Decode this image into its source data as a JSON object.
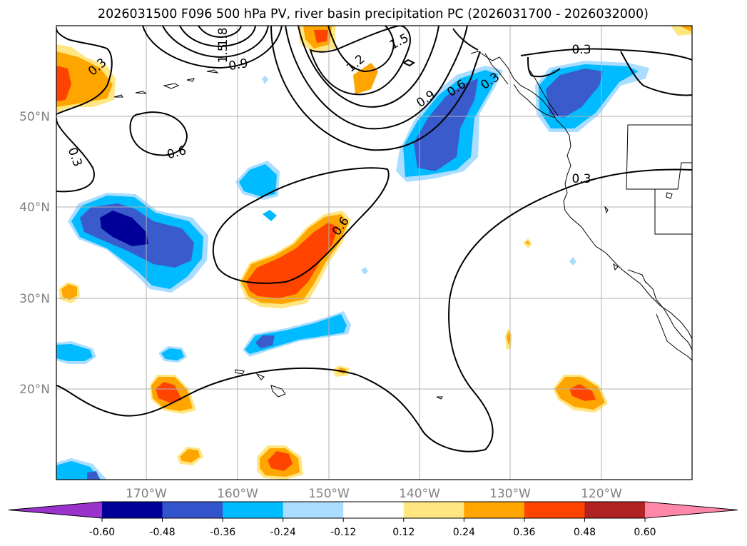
{
  "title": "2026031500 F096 500 hPa PV, river basin precipitation PC (2026031700 - 2026032000)",
  "latitude_labels": [
    "50°N",
    "40°N",
    "30°N",
    "20°N"
  ],
  "longitude_labels": [
    "170°W",
    "160°W",
    "150°W",
    "140°W",
    "130°W",
    "120°W"
  ],
  "contour_labels": [
    "0.3",
    "0.6",
    "0.9",
    "1.2",
    "1.5",
    "1.8"
  ],
  "colorbar": {
    "ticks": [
      "-0.60",
      "-0.48",
      "-0.36",
      "-0.24",
      "-0.12",
      "0.12",
      "0.24",
      "0.36",
      "0.48",
      "0.60"
    ],
    "colors": [
      "#9933cc",
      "#000099",
      "#3355cc",
      "#00bbff",
      "#aaddff",
      "#ffffff",
      "#ffe680",
      "#ffa500",
      "#ff4400",
      "#b22222",
      "#ff88aa"
    ]
  },
  "palette": {
    "blue_light": "#aaddff",
    "blue_cyan": "#00bbff",
    "blue_mid": "#3a5bcc",
    "blue_dark": "#000099",
    "yellow": "#ffe680",
    "orange": "#ffa500",
    "red_orange": "#ff4400"
  }
}
